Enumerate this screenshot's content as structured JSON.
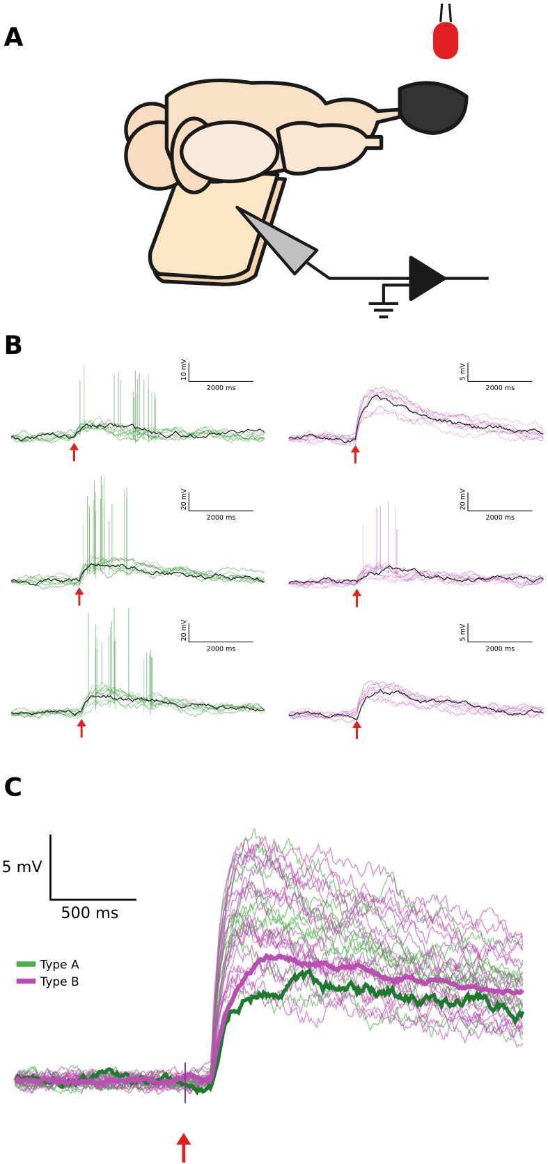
{
  "panels": {
    "a": {
      "label": "A"
    },
    "b": {
      "label": "B",
      "traces": [
        {
          "scale_y": "10 mV",
          "scale_x": "2000 ms"
        },
        {
          "scale_y": "5 mV",
          "scale_x": "2000 ms"
        },
        {
          "scale_y": "20 mV",
          "scale_x": "2000 ms"
        },
        {
          "scale_y": "20 mV",
          "scale_x": "2000 ms"
        },
        {
          "scale_y": "20 mV",
          "scale_x": "2000 ms"
        },
        {
          "scale_y": "5 mV",
          "scale_x": "2000 ms"
        }
      ]
    },
    "c": {
      "label": "C",
      "scale_y": "5 mV",
      "scale_x": "500 ms",
      "legend": [
        {
          "name": "Type A",
          "color": "#4daf4a"
        },
        {
          "name": "Type B",
          "color": "#b84fb1"
        }
      ]
    }
  }
}
